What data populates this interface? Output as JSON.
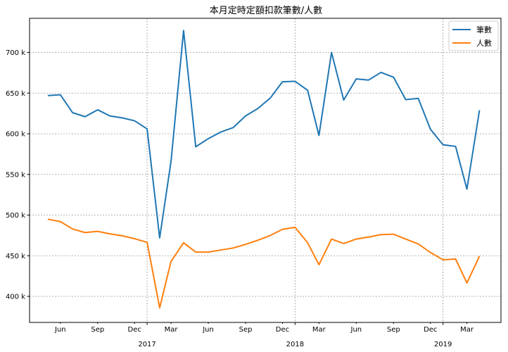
{
  "chart_data": {
    "type": "line",
    "title": "本月定時定額扣款筆數/人數",
    "xlabel": "",
    "ylabel": "",
    "x": [
      "2016-05",
      "2016-06",
      "2016-07",
      "2016-08",
      "2016-09",
      "2016-10",
      "2016-11",
      "2016-12",
      "2017-01",
      "2017-02",
      "2017-03",
      "2017-04",
      "2017-05",
      "2017-06",
      "2017-07",
      "2017-08",
      "2017-09",
      "2017-10",
      "2017-11",
      "2017-12",
      "2018-01",
      "2018-02",
      "2018-03",
      "2018-04",
      "2018-05",
      "2018-06",
      "2018-07",
      "2018-08",
      "2018-09",
      "2018-10",
      "2018-11",
      "2018-12",
      "2019-01",
      "2019-02",
      "2019-03",
      "2019-04"
    ],
    "x_range": [
      "2016-03-17",
      "2019-05-24"
    ],
    "ylim": [
      368000,
      742000
    ],
    "yticks": [
      400000,
      450000,
      500000,
      550000,
      600000,
      650000,
      700000
    ],
    "ytick_labels": [
      "400 k",
      "450 k",
      "500 k",
      "550 k",
      "600 k",
      "650 k",
      "700 k"
    ],
    "xticks_minor": [
      {
        "date": "2016-06",
        "label": "Jun"
      },
      {
        "date": "2016-09",
        "label": "Sep"
      },
      {
        "date": "2016-12",
        "label": "Dec"
      },
      {
        "date": "2017-03",
        "label": "Mar"
      },
      {
        "date": "2017-06",
        "label": "Jun"
      },
      {
        "date": "2017-09",
        "label": "Sep"
      },
      {
        "date": "2017-12",
        "label": "Dec"
      },
      {
        "date": "2018-03",
        "label": "Mar"
      },
      {
        "date": "2018-06",
        "label": "Jun"
      },
      {
        "date": "2018-09",
        "label": "Sep"
      },
      {
        "date": "2018-12",
        "label": "Dec"
      },
      {
        "date": "2019-03",
        "label": "Mar"
      }
    ],
    "xticks_major": [
      {
        "date": "2017-01",
        "label": "2017"
      },
      {
        "date": "2018-01",
        "label": "2018"
      },
      {
        "date": "2019-01",
        "label": "2019"
      }
    ],
    "grid": true,
    "legend_position": "top-right",
    "series": [
      {
        "name": "筆數",
        "color": "#1f77b4",
        "values": [
          647000,
          648000,
          626000,
          621000,
          629500,
          622000,
          619500,
          616000,
          606000,
          472000,
          566000,
          727000,
          584000,
          594000,
          602000,
          607500,
          622000,
          631000,
          644000,
          664000,
          664500,
          653500,
          598000,
          700000,
          641500,
          667500,
          666000,
          675500,
          669500,
          642000,
          643500,
          605500,
          586500,
          584500,
          532000,
          629000
        ]
      },
      {
        "name": "人數",
        "color": "#ff7f0e",
        "values": [
          495000,
          492000,
          483000,
          478500,
          480000,
          477000,
          474500,
          471000,
          466500,
          386000,
          443000,
          466000,
          454500,
          454500,
          457000,
          459500,
          464000,
          469000,
          475000,
          482500,
          485000,
          466000,
          439000,
          470500,
          465000,
          470500,
          473000,
          476000,
          476500,
          470500,
          464500,
          454000,
          445000,
          446000,
          416500,
          449500
        ]
      }
    ]
  }
}
